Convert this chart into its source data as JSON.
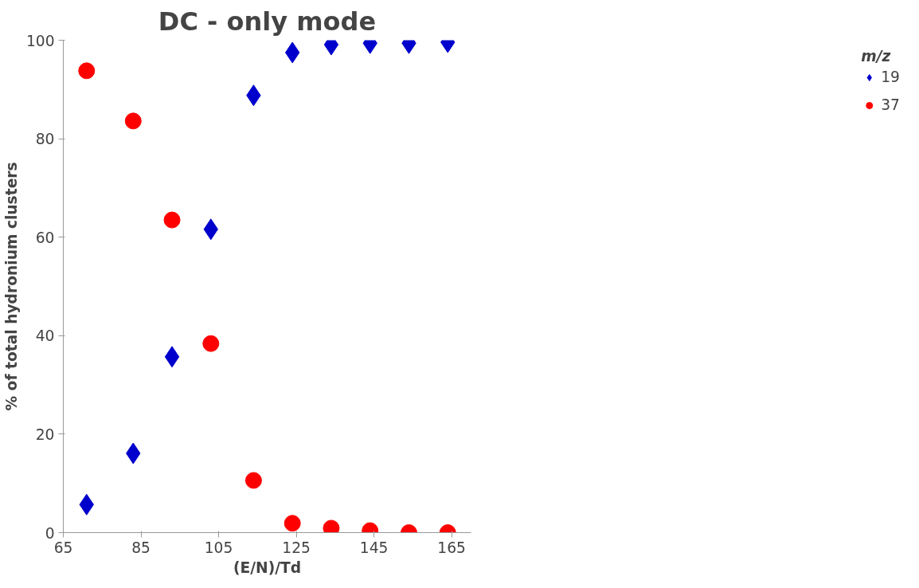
{
  "chart_data": {
    "type": "scatter",
    "title": "DC - only mode",
    "xlabel": "(E/N)/Td",
    "ylabel": "% of total hydronium clusters",
    "legend_title": "m/z",
    "legend": "right",
    "x": [
      71,
      83,
      93,
      103,
      114,
      124,
      134,
      144,
      154,
      164
    ],
    "series": [
      {
        "name": "19",
        "color": "#0000cc",
        "marker": "diamond",
        "values": [
          5.7,
          16.1,
          35.7,
          61.6,
          88.8,
          97.5,
          99.1,
          99.4,
          99.4,
          99.6
        ]
      },
      {
        "name": "37",
        "color": "#ff0000",
        "marker": "circle",
        "values": [
          93.8,
          83.6,
          63.5,
          38.4,
          10.6,
          1.9,
          0.9,
          0.4,
          0,
          0
        ]
      }
    ],
    "xlim": [
      65,
      170
    ],
    "xticks": [
      65,
      85,
      105,
      125,
      145,
      165
    ],
    "ylim": [
      0,
      100
    ],
    "yticks": [
      0,
      20,
      40,
      60,
      80,
      100
    ],
    "grid": false
  }
}
